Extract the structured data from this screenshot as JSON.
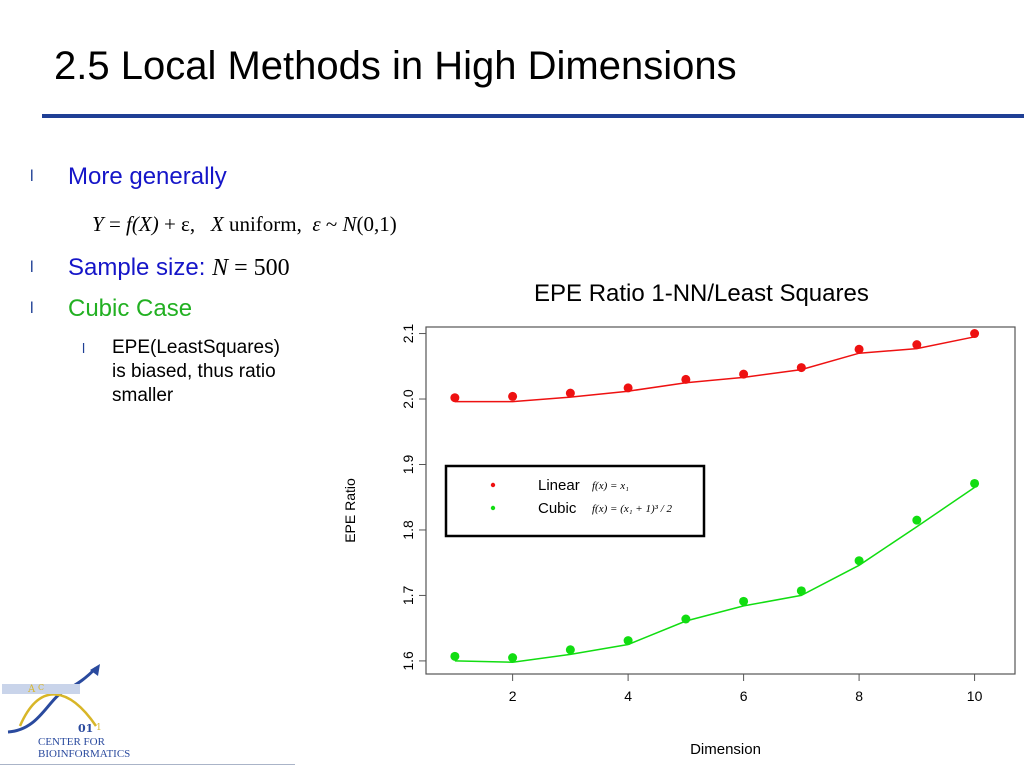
{
  "slide": {
    "title": "2.5 Local Methods in High Dimensions"
  },
  "bullets": [
    {
      "mark": "l",
      "text": "More generally",
      "color": "#1515c8"
    },
    {
      "mark": "l",
      "text": "Sample size: ",
      "color": "#1515c8",
      "math": "N",
      "math_rest": " = 500"
    },
    {
      "mark": "l",
      "text": "Cubic Case",
      "color": "#22b022"
    }
  ],
  "equation": {
    "Y": "Y",
    "eq1": " = ",
    "f": "f",
    "X1": "(X)",
    "plus": " + ε,",
    "X2": "X",
    "uniform": " uniform,",
    "eps": "ε",
    "tilde": " ~ ",
    "N": "N",
    "params": "(0,1)"
  },
  "sub_bullet": {
    "mark": "l",
    "lines": [
      "EPE(LeastSquares)",
      "is biased, thus ratio",
      "smaller"
    ]
  },
  "logo": {
    "line1": "CENTER FOR",
    "line2": "BIOINFORMATICS"
  },
  "chart_data": {
    "type": "line",
    "title": "EPE Ratio 1-NN/Least Squares",
    "xlabel": "Dimension",
    "ylabel": "EPE Ratio",
    "x_ticks": [
      2,
      4,
      6,
      8,
      10
    ],
    "y_ticks": [
      "1.6",
      "1.7",
      "1.8",
      "1.9",
      "2.0",
      "2.1"
    ],
    "xlim": [
      0.5,
      10.7
    ],
    "ylim": [
      1.58,
      2.11
    ],
    "x": [
      1,
      2,
      3,
      4,
      5,
      6,
      7,
      8,
      9,
      10
    ],
    "series": [
      {
        "name": "Linear",
        "formula": "f(x) = x₁",
        "color": "#ee1111",
        "points": [
          2.002,
          2.004,
          2.009,
          2.017,
          2.03,
          2.038,
          2.048,
          2.076,
          2.083,
          2.1
        ],
        "line": [
          1.996,
          1.996,
          2.003,
          2.012,
          2.025,
          2.033,
          2.045,
          2.07,
          2.077,
          2.095
        ]
      },
      {
        "name": "Cubic",
        "formula": "f(x) = (x₁ + 1)³ / 2",
        "color": "#11dd11",
        "points": [
          1.607,
          1.605,
          1.617,
          1.631,
          1.664,
          1.691,
          1.707,
          1.753,
          1.815,
          1.871
        ],
        "line": [
          1.6,
          1.598,
          1.61,
          1.625,
          1.661,
          1.684,
          1.7,
          1.746,
          1.805,
          1.865
        ]
      }
    ],
    "legend": "inside-center"
  }
}
